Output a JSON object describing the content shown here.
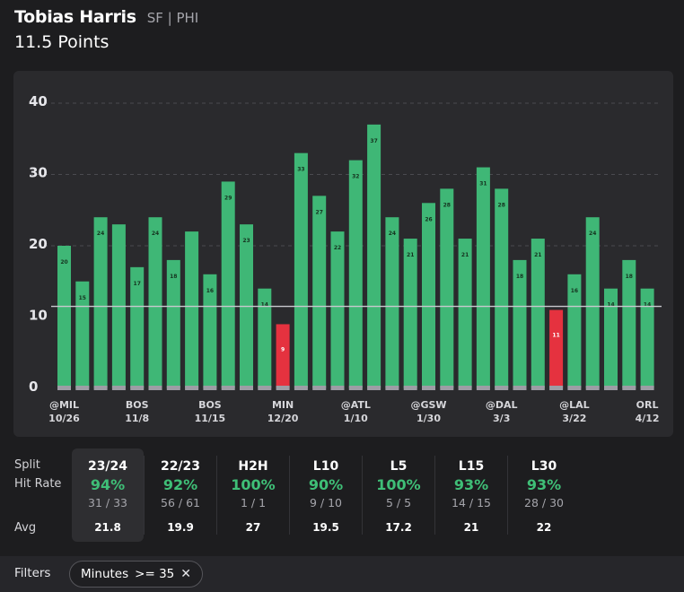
{
  "header": {
    "player_name": "Tobias Harris",
    "position_team": "SF | PHI",
    "prop_line": "11.5 Points"
  },
  "colors": {
    "hit": "#3fb776",
    "miss": "#e5323f",
    "minutes_strip": "#9d9da5",
    "line": "#c9c9cf",
    "card": "#2a2a2d",
    "page": "#1d1d1f"
  },
  "chart_data": {
    "type": "bar",
    "values": [
      20,
      15,
      24,
      23,
      17,
      24,
      18,
      22,
      16,
      29,
      23,
      14,
      9,
      33,
      27,
      22,
      32,
      37,
      24,
      21,
      26,
      28,
      21,
      31,
      28,
      18,
      21,
      11,
      16,
      24,
      14,
      18,
      14
    ],
    "bar_labels": [
      "20",
      "15",
      "24",
      "",
      "17",
      "24",
      "18",
      "",
      "16",
      "29",
      "23",
      "14",
      "9",
      "33",
      "27",
      "22",
      "32",
      "37",
      "24",
      "21",
      "26",
      "28",
      "21",
      "31",
      "28",
      "18",
      "21",
      "11",
      "16",
      "24",
      "14",
      "18",
      "14"
    ],
    "prop_line": 11.5,
    "ylim": [
      0,
      40
    ],
    "yticks": [
      0,
      10,
      20,
      30,
      40
    ],
    "x_labels": [
      {
        "index": 0,
        "opponent": "@MIL",
        "date": "10/26"
      },
      {
        "index": 4,
        "opponent": "BOS",
        "date": "11/8"
      },
      {
        "index": 8,
        "opponent": "BOS",
        "date": "11/15"
      },
      {
        "index": 12,
        "opponent": "MIN",
        "date": "12/20"
      },
      {
        "index": 16,
        "opponent": "@ATL",
        "date": "1/10"
      },
      {
        "index": 20,
        "opponent": "@GSW",
        "date": "1/30"
      },
      {
        "index": 24,
        "opponent": "@DAL",
        "date": "3/3"
      },
      {
        "index": 28,
        "opponent": "@LAL",
        "date": "3/22"
      },
      {
        "index": 32,
        "opponent": "ORL",
        "date": "4/12"
      }
    ],
    "grid": true,
    "legend": "none"
  },
  "splits": {
    "row_labels": {
      "split": "Split",
      "hit_rate": "Hit Rate",
      "avg": "Avg"
    },
    "columns": [
      {
        "name": "23/24",
        "pct": "94%",
        "frac": "31 / 33",
        "avg": "21.8",
        "active": true
      },
      {
        "name": "22/23",
        "pct": "92%",
        "frac": "56 / 61",
        "avg": "19.9",
        "active": false
      },
      {
        "name": "H2H",
        "pct": "100%",
        "frac": "1 / 1",
        "avg": "27",
        "active": false
      },
      {
        "name": "L10",
        "pct": "90%",
        "frac": "9 / 10",
        "avg": "19.5",
        "active": false
      },
      {
        "name": "L5",
        "pct": "100%",
        "frac": "5 / 5",
        "avg": "17.2",
        "active": false
      },
      {
        "name": "L15",
        "pct": "93%",
        "frac": "14 / 15",
        "avg": "21",
        "active": false
      },
      {
        "name": "L30",
        "pct": "93%",
        "frac": "28 / 30",
        "avg": "22",
        "active": false
      }
    ]
  },
  "filters": {
    "label": "Filters",
    "chip_name": "Minutes",
    "chip_value": ">= 35",
    "chip_close_icon": "close-icon"
  }
}
